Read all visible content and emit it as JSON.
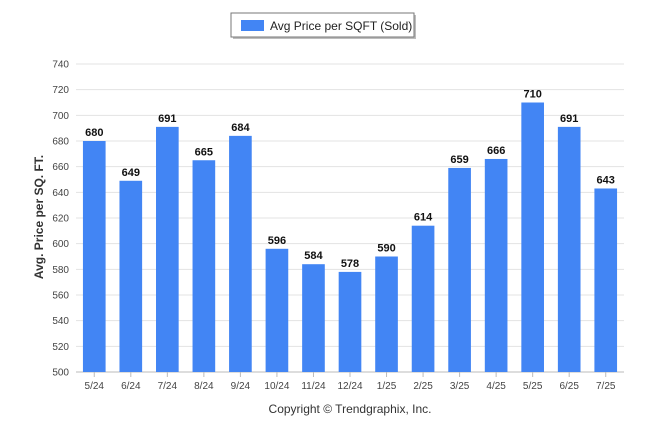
{
  "chart_data": {
    "type": "bar",
    "legend_position": "top-center",
    "grid": true,
    "categories": [
      "5/24",
      "6/24",
      "7/24",
      "8/24",
      "9/24",
      "10/24",
      "11/24",
      "12/24",
      "1/25",
      "2/25",
      "3/25",
      "4/25",
      "5/25",
      "6/25",
      "7/25"
    ],
    "series": [
      {
        "name": "Avg Price per SQFT (Sold)",
        "color": "#4285F4",
        "values": [
          680,
          649,
          691,
          665,
          684,
          596,
          584,
          578,
          590,
          614,
          659,
          666,
          710,
          691,
          643
        ]
      }
    ],
    "ylabel": "Avg. Price per SQ. FT.",
    "xlabel": "",
    "ylim": [
      500,
      740
    ],
    "yticks": [
      500,
      520,
      540,
      560,
      580,
      600,
      620,
      640,
      660,
      680,
      700,
      720,
      740
    ]
  },
  "copyright": "Copyright © Trendgraphix, Inc."
}
